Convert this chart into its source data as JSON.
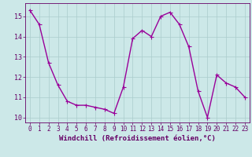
{
  "x": [
    0,
    1,
    2,
    3,
    4,
    5,
    6,
    7,
    8,
    9,
    10,
    11,
    12,
    13,
    14,
    15,
    16,
    17,
    18,
    19,
    20,
    21,
    22,
    23
  ],
  "y": [
    15.3,
    14.6,
    12.7,
    11.6,
    10.8,
    10.6,
    10.6,
    10.5,
    10.4,
    10.2,
    11.5,
    13.9,
    14.3,
    14.0,
    15.0,
    15.2,
    14.6,
    13.5,
    11.3,
    10.0,
    12.1,
    11.7,
    11.5,
    11.0
  ],
  "line_color": "#990099",
  "marker": "D",
  "marker_size": 1.8,
  "xlabel": "Windchill (Refroidissement éolien,°C)",
  "xlim_min": -0.5,
  "xlim_max": 23.5,
  "ylim_min": 9.75,
  "ylim_max": 15.65,
  "yticks": [
    10,
    11,
    12,
    13,
    14,
    15
  ],
  "xticks": [
    0,
    1,
    2,
    3,
    4,
    5,
    6,
    7,
    8,
    9,
    10,
    11,
    12,
    13,
    14,
    15,
    16,
    17,
    18,
    19,
    20,
    21,
    22,
    23
  ],
  "background_color": "#cce8e8",
  "grid_color": "#aacccc",
  "tick_color": "#660066",
  "label_color": "#660066",
  "line_width": 1.0,
  "tick_fontsize": 5.5,
  "xlabel_fontsize": 6.5
}
